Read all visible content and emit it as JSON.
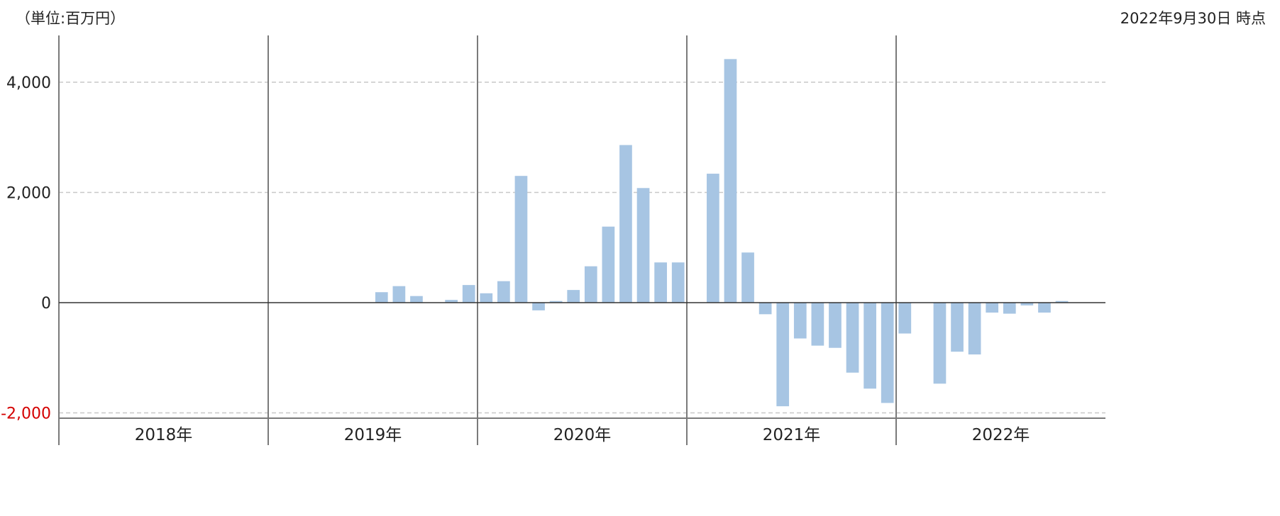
{
  "header": {
    "unit": "（単位:百万円）",
    "as_of": "2022年9月30日 時点"
  },
  "colors": {
    "bar": "#a7c5e3",
    "grid": "#c8c8c8",
    "axis": "#333333",
    "year_divider": "#7a7a7a",
    "negative_tick": "#d40000"
  },
  "chart_data": {
    "type": "bar",
    "title": "",
    "xlabel": "",
    "ylabel": "",
    "ylim": [
      -2000,
      4000
    ],
    "yticks": [
      {
        "value": 4000,
        "label": "4,000"
      },
      {
        "value": 2000,
        "label": "2,000"
      },
      {
        "value": 0,
        "label": "0"
      },
      {
        "value": -2000,
        "label": "-2,000"
      }
    ],
    "grid": true,
    "years": [
      "2018年",
      "2019年",
      "2020年",
      "2021年",
      "2022年"
    ],
    "months_per_year": 12,
    "values": [
      null,
      null,
      null,
      null,
      null,
      null,
      null,
      null,
      null,
      null,
      null,
      null,
      null,
      null,
      null,
      null,
      null,
      null,
      190,
      300,
      120,
      null,
      50,
      320,
      170,
      390,
      2300,
      -140,
      30,
      230,
      660,
      1380,
      2860,
      2080,
      730,
      730,
      null,
      2340,
      4420,
      910,
      -210,
      -1880,
      -650,
      -780,
      -820,
      -1270,
      -1560,
      -1820,
      -560,
      null,
      -1470,
      -890,
      -940,
      -180,
      -200,
      -50,
      -180,
      30,
      null,
      null
    ]
  }
}
